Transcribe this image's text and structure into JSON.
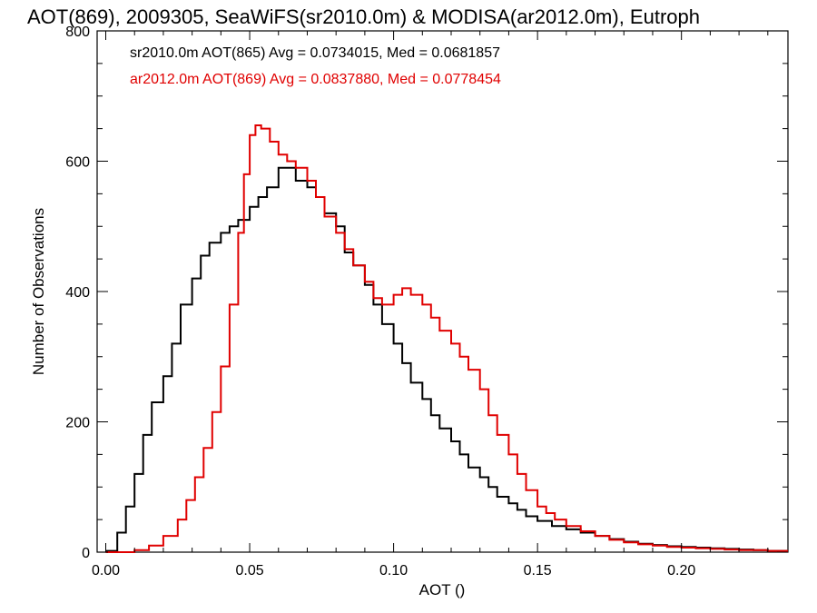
{
  "chart_data": {
    "type": "line",
    "title": "AOT(869), 2009305, SeaWiFS(sr2010.0m) & MODISA(ar2012.0m), Eutroph",
    "xlabel": "AOT ()",
    "ylabel": "Number of Observations",
    "xlim": [
      -0.003,
      0.237
    ],
    "ylim": [
      0,
      800
    ],
    "x_ticks": [
      "0.00",
      "0.05",
      "0.10",
      "0.15",
      "0.20"
    ],
    "x_tick_values": [
      0.0,
      0.05,
      0.1,
      0.15,
      0.2
    ],
    "y_ticks": [
      "0",
      "200",
      "400",
      "600",
      "800"
    ],
    "y_tick_values": [
      0,
      200,
      400,
      600,
      800
    ],
    "legend_placement": "top-left",
    "grid": false,
    "series": [
      {
        "name": "sr2010.0m AOT(865) Avg = 0.0734015, Med = 0.0681857",
        "color": "#000000",
        "x": [
          0.0,
          0.004,
          0.007,
          0.01,
          0.013,
          0.016,
          0.02,
          0.023,
          0.026,
          0.03,
          0.033,
          0.036,
          0.04,
          0.043,
          0.046,
          0.05,
          0.053,
          0.056,
          0.06,
          0.063,
          0.066,
          0.07,
          0.073,
          0.076,
          0.08,
          0.083,
          0.086,
          0.09,
          0.093,
          0.096,
          0.1,
          0.103,
          0.106,
          0.11,
          0.113,
          0.116,
          0.12,
          0.123,
          0.126,
          0.13,
          0.133,
          0.136,
          0.14,
          0.143,
          0.146,
          0.15,
          0.155,
          0.16,
          0.165,
          0.17,
          0.175,
          0.18,
          0.185,
          0.19,
          0.195,
          0.2,
          0.205,
          0.21,
          0.215,
          0.22,
          0.225,
          0.23,
          0.235
        ],
        "y": [
          2,
          30,
          70,
          120,
          180,
          230,
          270,
          320,
          380,
          420,
          455,
          475,
          490,
          500,
          510,
          530,
          545,
          560,
          590,
          590,
          570,
          560,
          545,
          520,
          500,
          460,
          440,
          410,
          380,
          350,
          320,
          290,
          260,
          235,
          210,
          190,
          170,
          150,
          130,
          115,
          100,
          85,
          75,
          65,
          55,
          48,
          40,
          35,
          30,
          25,
          20,
          16,
          13,
          11,
          9,
          8,
          7,
          6,
          5,
          4,
          3,
          2,
          2
        ]
      },
      {
        "name": "ar2012.0m AOT(869) Avg = 0.0837880, Med = 0.0778454",
        "color": "#e00000",
        "x": [
          0.0,
          0.01,
          0.015,
          0.02,
          0.025,
          0.028,
          0.031,
          0.034,
          0.037,
          0.04,
          0.043,
          0.046,
          0.048,
          0.05,
          0.052,
          0.054,
          0.057,
          0.06,
          0.063,
          0.066,
          0.07,
          0.073,
          0.076,
          0.08,
          0.083,
          0.086,
          0.09,
          0.093,
          0.096,
          0.1,
          0.103,
          0.106,
          0.11,
          0.113,
          0.116,
          0.12,
          0.123,
          0.126,
          0.13,
          0.133,
          0.136,
          0.14,
          0.143,
          0.146,
          0.15,
          0.153,
          0.156,
          0.16,
          0.165,
          0.17,
          0.175,
          0.18,
          0.185,
          0.19,
          0.195,
          0.2,
          0.205,
          0.21,
          0.215,
          0.22,
          0.225,
          0.23,
          0.235
        ],
        "y": [
          0,
          3,
          10,
          25,
          50,
          80,
          115,
          160,
          215,
          285,
          380,
          490,
          580,
          640,
          655,
          650,
          630,
          610,
          600,
          590,
          570,
          545,
          515,
          490,
          465,
          440,
          415,
          390,
          380,
          395,
          405,
          395,
          380,
          360,
          340,
          320,
          300,
          280,
          250,
          210,
          180,
          150,
          120,
          95,
          70,
          60,
          50,
          40,
          32,
          25,
          19,
          15,
          12,
          10,
          8,
          7,
          6,
          5,
          4,
          3,
          3,
          2,
          2
        ]
      }
    ]
  }
}
